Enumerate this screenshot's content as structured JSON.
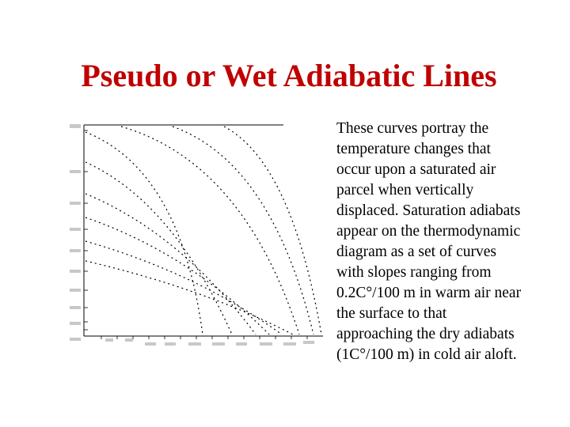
{
  "slide": {
    "title": "Pseudo or Wet Adiabatic Lines",
    "body_lines": [
      "These curves portray the",
      "temperature changes that",
      "occur upon a saturated air",
      "parcel when vertically",
      "displaced. Saturation adiabats",
      "appear on the thermodynamic",
      "diagram as a set of curves",
      "with slopes ranging from",
      "0.2C°/100 m in warm air near",
      "the surface to that",
      "approaching the dry adiabats",
      "(1C°/100 m) in cold air aloft."
    ]
  },
  "figure": {
    "description_hidden": "",
    "axis_left_labels": [
      " ",
      " ",
      " ",
      " ",
      " ",
      " ",
      " ",
      " ",
      " ",
      " "
    ],
    "axis_left_top_label": "",
    "axis_bottom_left_label": "",
    "curve_count": 9,
    "colors": {
      "ink": "#000000",
      "paper": "#ffffff"
    }
  }
}
